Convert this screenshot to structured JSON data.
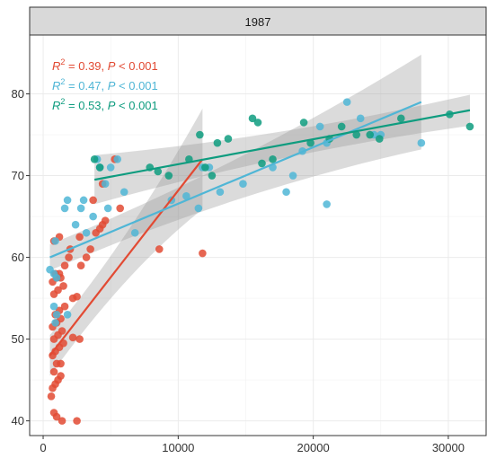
{
  "chart_data": {
    "type": "scatter",
    "panel_title": "1987",
    "xlabel": "",
    "ylabel": "",
    "xlim": [
      -1000,
      32800
    ],
    "ylim": [
      38.2,
      87.2
    ],
    "x_ticks": [
      0,
      10000,
      20000,
      30000
    ],
    "y_ticks": [
      40,
      50,
      60,
      70,
      80
    ],
    "grid": true,
    "legend": "none",
    "annotations": [
      {
        "r2": "0.39",
        "p": "0.001",
        "color": "#E24A33"
      },
      {
        "r2": "0.47",
        "p": "0.001",
        "color": "#4FB6D6"
      },
      {
        "r2": "0.53",
        "p": "0.001",
        "color": "#0E9C7F"
      }
    ],
    "series": [
      {
        "color": "#E24A33",
        "fit": {
          "x": [
            500,
            11800
          ],
          "y": [
            48,
            72
          ]
        },
        "band": {
          "upper": [
            50.5,
            78.2
          ],
          "lower": [
            45.5,
            65.9
          ]
        },
        "points": [
          [
            600,
            43
          ],
          [
            800,
            41
          ],
          [
            1000,
            40.5
          ],
          [
            1400,
            40
          ],
          [
            2500,
            40
          ],
          [
            700,
            44
          ],
          [
            900,
            44.5
          ],
          [
            1100,
            45
          ],
          [
            1300,
            45.5
          ],
          [
            800,
            46
          ],
          [
            1000,
            47
          ],
          [
            1300,
            47
          ],
          [
            700,
            48
          ],
          [
            900,
            48.5
          ],
          [
            1200,
            49
          ],
          [
            1500,
            49.5
          ],
          [
            800,
            50
          ],
          [
            1100,
            50.5
          ],
          [
            1400,
            51
          ],
          [
            2200,
            50.2
          ],
          [
            2700,
            50
          ],
          [
            700,
            51.5
          ],
          [
            1000,
            52
          ],
          [
            1300,
            52.5
          ],
          [
            900,
            53
          ],
          [
            1200,
            53.5
          ],
          [
            1600,
            54
          ],
          [
            2200,
            55
          ],
          [
            2500,
            55.2
          ],
          [
            800,
            55.5
          ],
          [
            1100,
            56
          ],
          [
            1500,
            56.5
          ],
          [
            700,
            57
          ],
          [
            1000,
            57.5
          ],
          [
            1300,
            57.5
          ],
          [
            900,
            58
          ],
          [
            1200,
            58
          ],
          [
            1600,
            59
          ],
          [
            2800,
            59
          ],
          [
            1900,
            60
          ],
          [
            3200,
            60
          ],
          [
            2000,
            61
          ],
          [
            3500,
            61
          ],
          [
            1200,
            62.5
          ],
          [
            800,
            62
          ],
          [
            2700,
            62.5
          ],
          [
            3900,
            63
          ],
          [
            4200,
            63.5
          ],
          [
            4400,
            64
          ],
          [
            4600,
            64.5
          ],
          [
            3700,
            67
          ],
          [
            4400,
            69
          ],
          [
            5700,
            66
          ],
          [
            5300,
            72
          ],
          [
            8600,
            61
          ],
          [
            11800,
            60.5
          ]
        ]
      },
      {
        "color": "#4FB6D6",
        "fit": {
          "x": [
            500,
            28000
          ],
          "y": [
            60,
            79
          ]
        },
        "band": {
          "upper": [
            61.6,
            84.8
          ],
          "lower": [
            58.4,
            73.2
          ]
        },
        "points": [
          [
            500,
            58.5
          ],
          [
            800,
            58
          ],
          [
            1000,
            57.5
          ],
          [
            800,
            54
          ],
          [
            1000,
            53
          ],
          [
            900,
            52
          ],
          [
            1800,
            53
          ],
          [
            900,
            62
          ],
          [
            1600,
            66
          ],
          [
            1800,
            67
          ],
          [
            2800,
            66
          ],
          [
            2400,
            64
          ],
          [
            3000,
            67
          ],
          [
            4000,
            72
          ],
          [
            4200,
            71
          ],
          [
            4800,
            66
          ],
          [
            3200,
            63
          ],
          [
            3700,
            65
          ],
          [
            4600,
            69
          ],
          [
            5000,
            71
          ],
          [
            5500,
            72
          ],
          [
            6000,
            68
          ],
          [
            6800,
            63
          ],
          [
            9500,
            67
          ],
          [
            10600,
            67.5
          ],
          [
            11500,
            66
          ],
          [
            11800,
            71
          ],
          [
            12300,
            71
          ],
          [
            13100,
            68
          ],
          [
            14800,
            69
          ],
          [
            17000,
            71
          ],
          [
            18500,
            70
          ],
          [
            19200,
            73
          ],
          [
            21000,
            74
          ],
          [
            20500,
            76
          ],
          [
            22500,
            79
          ],
          [
            23500,
            77
          ],
          [
            24500,
            75
          ],
          [
            25000,
            75
          ],
          [
            21000,
            66.5
          ],
          [
            18000,
            68
          ],
          [
            28000,
            74
          ]
        ]
      },
      {
        "color": "#0E9C7F",
        "fit": {
          "x": [
            3800,
            31600
          ],
          "y": [
            69.5,
            78
          ]
        },
        "band": {
          "upper": [
            72.5,
            79.9
          ],
          "lower": [
            66.5,
            76.1
          ]
        },
        "points": [
          [
            3800,
            72
          ],
          [
            4200,
            71
          ],
          [
            7900,
            71
          ],
          [
            8500,
            70.5
          ],
          [
            9300,
            70
          ],
          [
            10800,
            72
          ],
          [
            11600,
            75
          ],
          [
            12000,
            71
          ],
          [
            12500,
            70
          ],
          [
            12900,
            74
          ],
          [
            13700,
            74.5
          ],
          [
            15500,
            77
          ],
          [
            15900,
            76.5
          ],
          [
            16200,
            71.5
          ],
          [
            17000,
            72
          ],
          [
            19300,
            76.5
          ],
          [
            19800,
            74
          ],
          [
            21200,
            74.5
          ],
          [
            22100,
            76
          ],
          [
            23200,
            75
          ],
          [
            24200,
            75
          ],
          [
            24900,
            74.5
          ],
          [
            26500,
            77
          ],
          [
            30100,
            77.5
          ],
          [
            31600,
            76
          ]
        ]
      }
    ]
  }
}
